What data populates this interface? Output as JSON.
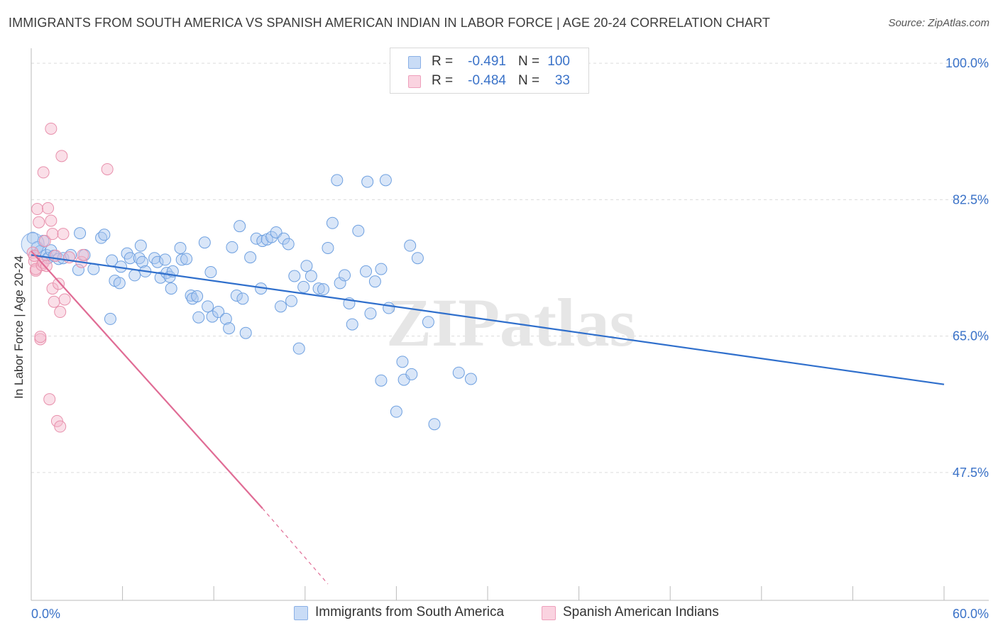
{
  "title": "IMMIGRANTS FROM SOUTH AMERICA VS SPANISH AMERICAN INDIAN IN LABOR FORCE | AGE 20-24 CORRELATION CHART",
  "source": "Source: ZipAtlas.com",
  "watermark": "ZIPatlas",
  "legend_top": {
    "rows": [
      {
        "r_label": "R =",
        "r_value": "-0.491",
        "n_label": "N =",
        "n_value": "100",
        "color": "#aac8f0"
      },
      {
        "r_label": "R =",
        "r_value": "-0.484",
        "n_label": "N =",
        "n_value": "33",
        "color": "#f5b8cc"
      }
    ]
  },
  "legend_bottom": [
    {
      "label": "Immigrants from South America",
      "color": "#aac8f0"
    },
    {
      "label": "Spanish American Indians",
      "color": "#f5b8cc"
    }
  ],
  "chart_data": {
    "type": "scatter",
    "title": "IMMIGRANTS FROM SOUTH AMERICA VS SPANISH AMERICAN INDIAN IN LABOR FORCE | AGE 20-24 CORRELATION CHART",
    "xlabel": "",
    "ylabel": "In Labor Force | Age 20-24",
    "xlim": [
      0,
      60
    ],
    "ylim": [
      31.1,
      101.1
    ],
    "x_tick_labels": [
      {
        "value": 0,
        "label": "0.0%"
      },
      {
        "value": 60,
        "label": "60.0%"
      }
    ],
    "y_tick_labels": [
      {
        "value": 100,
        "label": "100.0%"
      },
      {
        "value": 82.5,
        "label": "82.5%"
      },
      {
        "value": 65,
        "label": "65.0%"
      },
      {
        "value": 47.5,
        "label": "47.5%"
      }
    ],
    "grid": "horizontal dashed",
    "legend_position": "bottom",
    "series": [
      {
        "name": "Immigrants from South America",
        "color": "#6ea0e0",
        "fill": "#aac8f0",
        "trend": {
          "x": [
            0.0,
            60.0
          ],
          "y": [
            75.4,
            58.8
          ],
          "color": "#2f6fcc"
        },
        "points": [
          [
            0.1,
            77.6
          ],
          [
            0.4,
            76.4
          ],
          [
            0.6,
            75.9
          ],
          [
            0.8,
            77.2
          ],
          [
            1.0,
            75.4
          ],
          [
            1.1,
            75.0
          ],
          [
            1.3,
            76.0
          ],
          [
            1.5,
            75.3
          ],
          [
            1.8,
            74.9
          ],
          [
            2.1,
            75.0
          ],
          [
            2.6,
            75.4
          ],
          [
            3.1,
            73.5
          ],
          [
            3.2,
            78.2
          ],
          [
            3.5,
            75.4
          ],
          [
            4.1,
            73.6
          ],
          [
            4.6,
            77.6
          ],
          [
            4.8,
            78.0
          ],
          [
            5.2,
            67.2
          ],
          [
            5.3,
            74.7
          ],
          [
            5.5,
            72.1
          ],
          [
            5.8,
            71.8
          ],
          [
            5.9,
            73.9
          ],
          [
            6.3,
            75.6
          ],
          [
            6.5,
            75.0
          ],
          [
            6.8,
            72.8
          ],
          [
            7.1,
            75.0
          ],
          [
            7.2,
            76.6
          ],
          [
            7.3,
            74.5
          ],
          [
            7.5,
            73.3
          ],
          [
            8.1,
            75.0
          ],
          [
            8.3,
            74.5
          ],
          [
            8.5,
            72.5
          ],
          [
            8.8,
            74.8
          ],
          [
            8.9,
            73.1
          ],
          [
            9.1,
            72.6
          ],
          [
            9.2,
            71.1
          ],
          [
            9.3,
            73.3
          ],
          [
            9.8,
            76.3
          ],
          [
            9.9,
            74.8
          ],
          [
            10.2,
            74.9
          ],
          [
            10.5,
            70.2
          ],
          [
            10.6,
            69.8
          ],
          [
            10.9,
            70.1
          ],
          [
            11.0,
            67.4
          ],
          [
            11.4,
            77.0
          ],
          [
            11.6,
            68.8
          ],
          [
            11.8,
            73.2
          ],
          [
            11.9,
            67.5
          ],
          [
            12.3,
            68.1
          ],
          [
            12.8,
            67.2
          ],
          [
            13.0,
            66.0
          ],
          [
            13.2,
            76.4
          ],
          [
            13.5,
            70.2
          ],
          [
            13.9,
            69.8
          ],
          [
            13.7,
            79.1
          ],
          [
            14.1,
            65.4
          ],
          [
            14.4,
            75.1
          ],
          [
            14.8,
            77.5
          ],
          [
            15.1,
            71.1
          ],
          [
            15.2,
            77.2
          ],
          [
            15.5,
            77.4
          ],
          [
            15.8,
            77.7
          ],
          [
            16.1,
            78.3
          ],
          [
            16.4,
            68.8
          ],
          [
            16.6,
            77.5
          ],
          [
            16.9,
            76.8
          ],
          [
            17.1,
            69.5
          ],
          [
            17.3,
            72.7
          ],
          [
            17.6,
            63.4
          ],
          [
            17.9,
            71.3
          ],
          [
            18.1,
            74.0
          ],
          [
            18.4,
            72.7
          ],
          [
            18.9,
            71.1
          ],
          [
            19.2,
            71.0
          ],
          [
            19.5,
            76.3
          ],
          [
            19.8,
            79.5
          ],
          [
            20.1,
            85.0
          ],
          [
            20.3,
            71.8
          ],
          [
            20.6,
            72.8
          ],
          [
            20.9,
            69.2
          ],
          [
            21.1,
            66.5
          ],
          [
            21.5,
            78.5
          ],
          [
            22.0,
            73.3
          ],
          [
            22.1,
            84.8
          ],
          [
            22.3,
            67.9
          ],
          [
            22.6,
            72.0
          ],
          [
            23.0,
            73.6
          ],
          [
            23.3,
            85.0
          ],
          [
            23.0,
            59.3
          ],
          [
            23.5,
            68.6
          ],
          [
            24.0,
            55.3
          ],
          [
            24.4,
            61.7
          ],
          [
            24.5,
            59.4
          ],
          [
            24.9,
            76.6
          ],
          [
            25.0,
            60.1
          ],
          [
            25.4,
            75.0
          ],
          [
            26.1,
            66.8
          ],
          [
            26.5,
            53.7
          ],
          [
            28.1,
            60.3
          ],
          [
            28.9,
            59.5
          ]
        ]
      },
      {
        "name": "Spanish American Indians",
        "color": "#e890ac",
        "fill": "#f5b8cc",
        "trend": {
          "x": [
            0.0,
            15.2
          ],
          "y": [
            75.9,
            42.9
          ],
          "dash_to": [
            19.5,
            33.2
          ],
          "color": "#e06c95"
        },
        "points": [
          [
            0.1,
            75.7
          ],
          [
            0.2,
            74.6
          ],
          [
            0.2,
            75.3
          ],
          [
            0.3,
            73.4
          ],
          [
            0.3,
            73.6
          ],
          [
            0.4,
            81.3
          ],
          [
            0.5,
            79.6
          ],
          [
            0.6,
            64.6
          ],
          [
            0.6,
            64.9
          ],
          [
            0.7,
            74.1
          ],
          [
            0.8,
            74.4
          ],
          [
            0.8,
            86.0
          ],
          [
            0.9,
            77.2
          ],
          [
            1.0,
            74.0
          ],
          [
            1.1,
            81.4
          ],
          [
            1.2,
            56.9
          ],
          [
            1.3,
            91.6
          ],
          [
            1.3,
            79.8
          ],
          [
            1.4,
            78.1
          ],
          [
            1.4,
            71.1
          ],
          [
            1.5,
            69.4
          ],
          [
            1.6,
            75.3
          ],
          [
            1.7,
            54.1
          ],
          [
            1.8,
            71.7
          ],
          [
            1.9,
            68.1
          ],
          [
            1.9,
            53.4
          ],
          [
            2.0,
            88.1
          ],
          [
            2.1,
            78.1
          ],
          [
            2.2,
            69.7
          ],
          [
            2.5,
            75.1
          ],
          [
            3.3,
            74.5
          ],
          [
            3.4,
            75.4
          ],
          [
            5.0,
            86.4
          ]
        ]
      }
    ]
  }
}
